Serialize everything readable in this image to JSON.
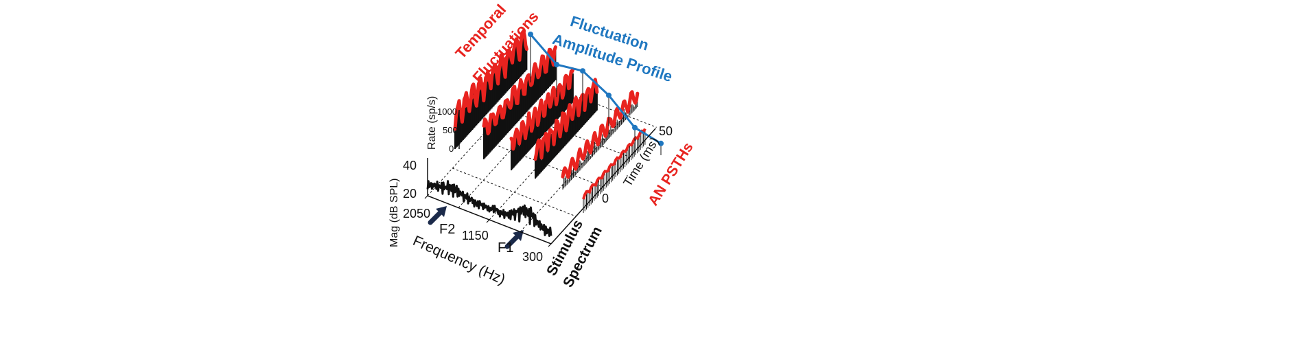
{
  "labels": {
    "temporal": [
      "Temporal",
      "Fluctuations"
    ],
    "fluct_amp": [
      "Fluctuation",
      "Amplitude Profile"
    ],
    "rate_axis": "Rate (sp/s)",
    "rate_ticks": [
      "1000",
      "500",
      "0"
    ],
    "mag_axis": "Mag (dB SPL)",
    "mag_ticks": [
      "40",
      "20"
    ],
    "freq_ticks": [
      "2050",
      "1150",
      "300"
    ],
    "formants": [
      "F2",
      "F1"
    ],
    "freq_axis": "Frequency (Hz)",
    "time_ticks": [
      "0",
      "50"
    ],
    "time_axis": "Time (ms)",
    "an_psths": "AN PSTHs",
    "stimulus": [
      "Stimulus",
      "Spectrum"
    ]
  },
  "colors": {
    "red": "#e8231f",
    "blue": "#1f77c0",
    "black": "#111111"
  },
  "fluctuation_profile": [
    1.0,
    0.62,
    0.82,
    0.58,
    0.15,
    0.12
  ]
}
